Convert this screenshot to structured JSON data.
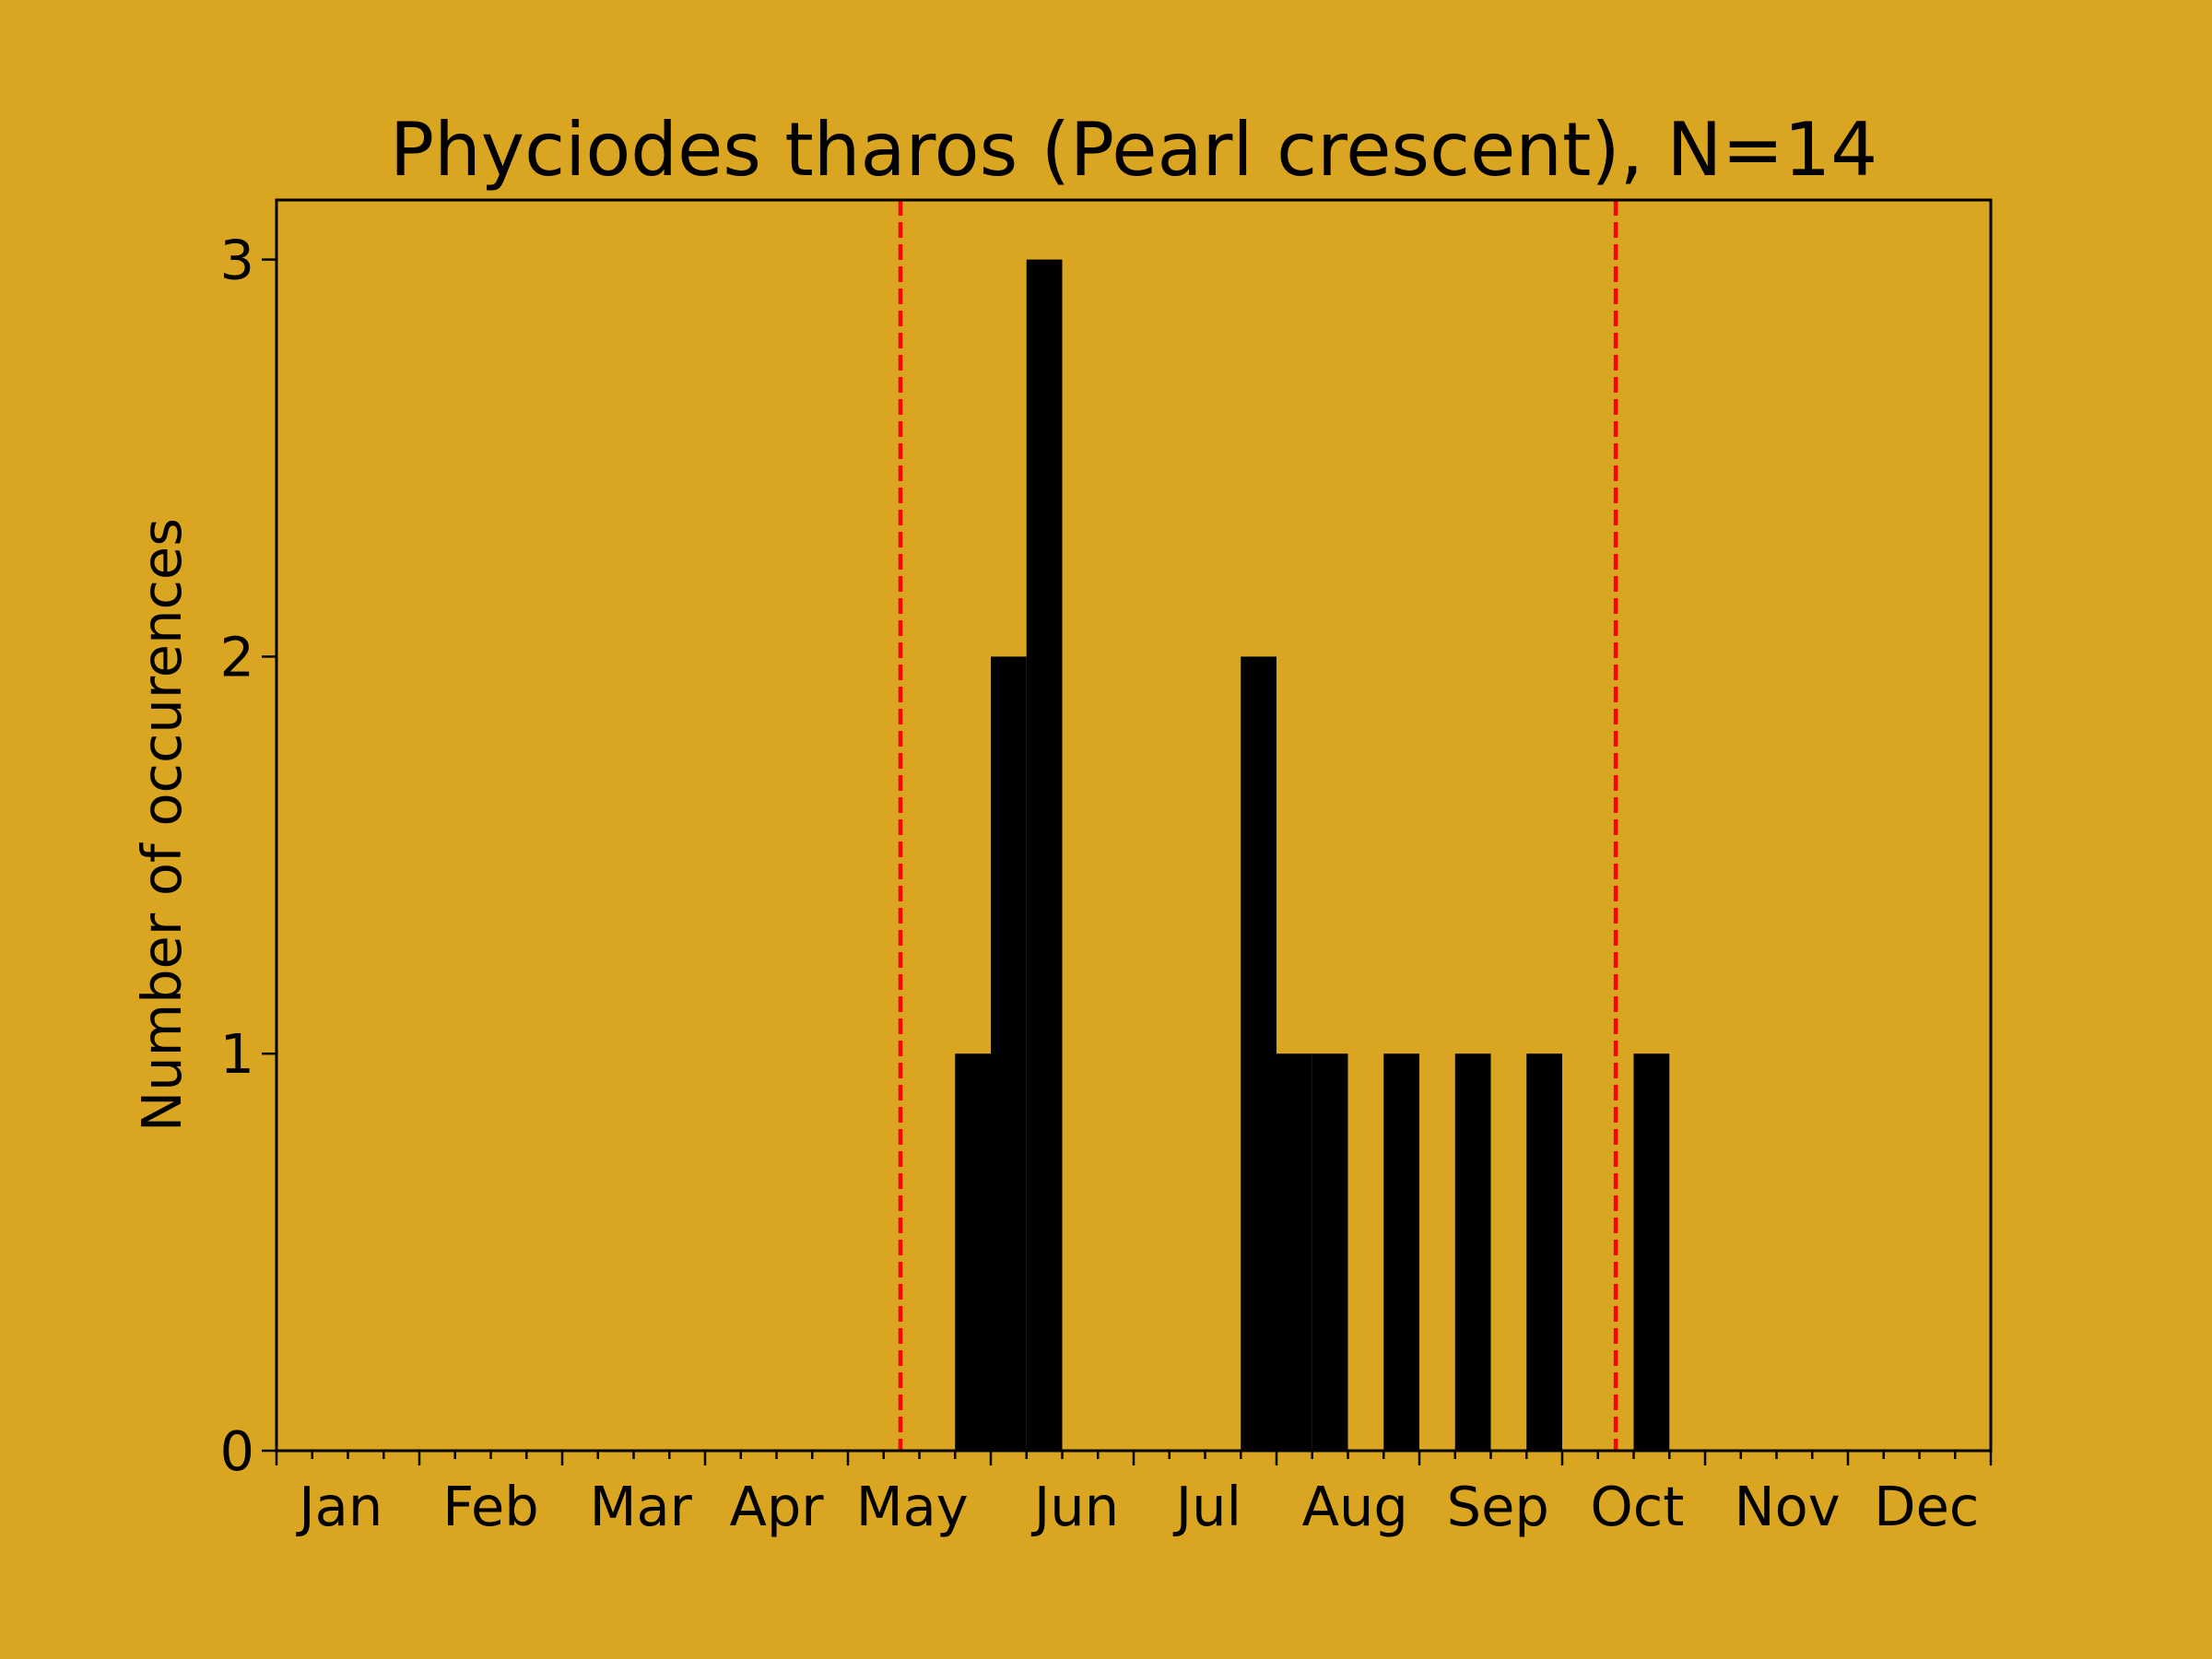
{
  "chart_data": {
    "type": "bar",
    "title": "Phyciodes tharos (Pearl crescent), N=14",
    "xlabel": "",
    "ylabel": "Number of occurences",
    "x_tick_labels": [
      "Jan",
      "Feb",
      "Mar",
      "Apr",
      "May",
      "Jun",
      "Jul",
      "Aug",
      "Sep",
      "Oct",
      "Nov",
      "Dec"
    ],
    "y_ticks": [
      0,
      1,
      2,
      3
    ],
    "ylim": [
      0,
      3.15
    ],
    "xlim_bins": [
      0,
      48
    ],
    "bins_per_month": 4,
    "bars": [
      {
        "bin": 19,
        "value": 1
      },
      {
        "bin": 20,
        "value": 2
      },
      {
        "bin": 21,
        "value": 3
      },
      {
        "bin": 27,
        "value": 2
      },
      {
        "bin": 28,
        "value": 1
      },
      {
        "bin": 29,
        "value": 1
      },
      {
        "bin": 31,
        "value": 1
      },
      {
        "bin": 33,
        "value": 1
      },
      {
        "bin": 35,
        "value": 1
      },
      {
        "bin": 38,
        "value": 1
      }
    ],
    "reference_lines_bins": [
      17.47,
      37.5
    ],
    "grid": false,
    "colors": {
      "background": "#DAA520",
      "bars": "#000000",
      "reference_lines": "#FF0000"
    }
  }
}
